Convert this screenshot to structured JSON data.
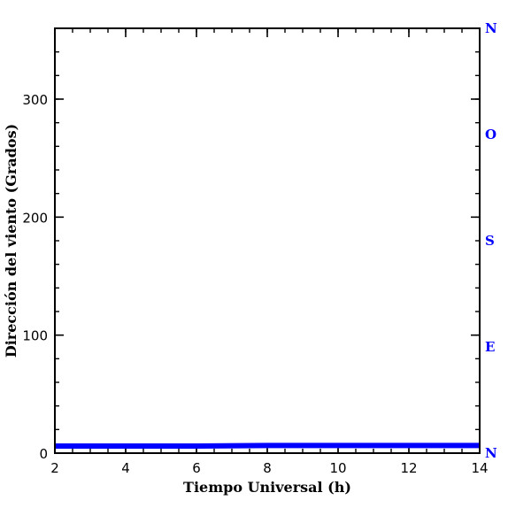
{
  "chart_data": {
    "type": "line",
    "xlabel": "Tiempo Universal (h)",
    "ylabel": "Dirección del viento (Grados)",
    "xlim": [
      2,
      14
    ],
    "ylim": [
      0,
      360
    ],
    "x_ticks": [
      2,
      4,
      6,
      8,
      10,
      12,
      14
    ],
    "x_minor_step": 0.5,
    "y_ticks": [
      0,
      100,
      200,
      300
    ],
    "y_minor_step": 20,
    "right_axis": {
      "labels": [
        {
          "label": "N",
          "value": 0
        },
        {
          "label": "E",
          "value": 90
        },
        {
          "label": "S",
          "value": 180
        },
        {
          "label": "O",
          "value": 270
        },
        {
          "label": "N",
          "value": 360
        }
      ],
      "color": "#0000ff"
    },
    "series": [
      {
        "color": "#0000ff",
        "x": [
          2,
          4,
          6,
          8,
          10,
          12,
          14
        ],
        "y": [
          6,
          6,
          6,
          6.5,
          6.5,
          6.5,
          6.5
        ]
      }
    ],
    "grid": false
  }
}
